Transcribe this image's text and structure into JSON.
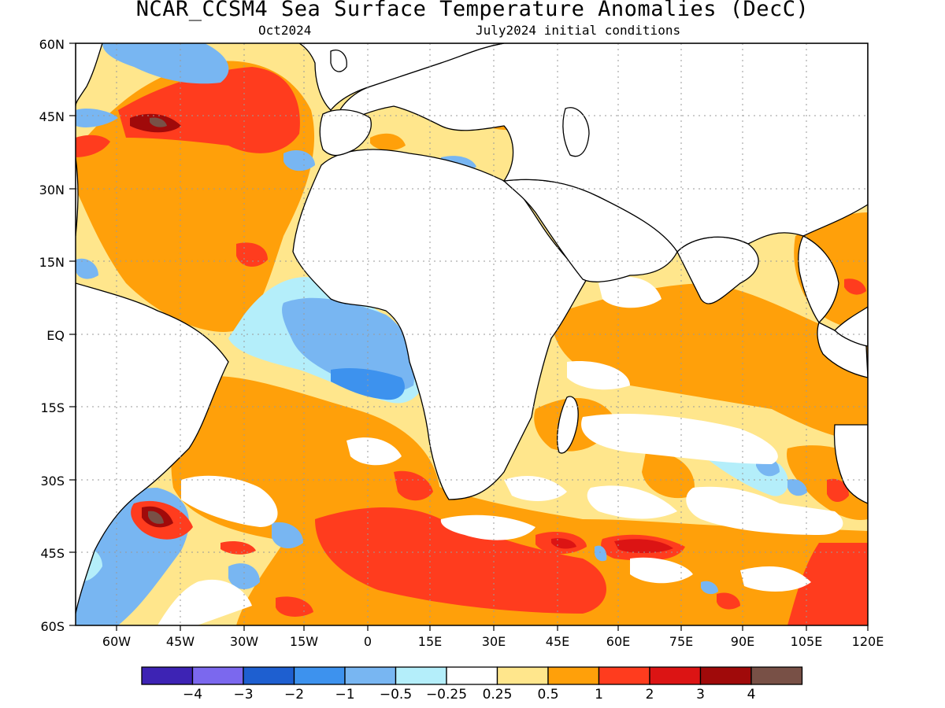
{
  "header": {
    "title": "NCAR_CCSM4 Sea Surface Temperature Anomalies (DecC)",
    "valid_month": "Oct2024",
    "init": "July2024 initial conditions"
  },
  "map": {
    "lat_labels": [
      "60N",
      "45N",
      "30N",
      "15N",
      "EQ",
      "15S",
      "30S",
      "45S",
      "60S"
    ],
    "lon_labels": [
      "60W",
      "45W",
      "30W",
      "15W",
      "0",
      "15E",
      "30E",
      "45E",
      "60E",
      "75E",
      "90E",
      "105E",
      "120E"
    ]
  },
  "colorbar": {
    "colors": [
      "#3d23b4",
      "#7b68ee",
      "#1e5fd0",
      "#3d92ee",
      "#78b6f2",
      "#b4eefa",
      "#ffffff",
      "#ffe68c",
      "#ffa00a",
      "#ff3c1e",
      "#dc1414",
      "#a00a0a",
      "#785046"
    ],
    "labels": [
      "−4",
      "−3",
      "−2",
      "−1",
      "−0.5",
      "−0.25",
      "0.25",
      "0.5",
      "1",
      "2",
      "3",
      "4"
    ]
  }
}
